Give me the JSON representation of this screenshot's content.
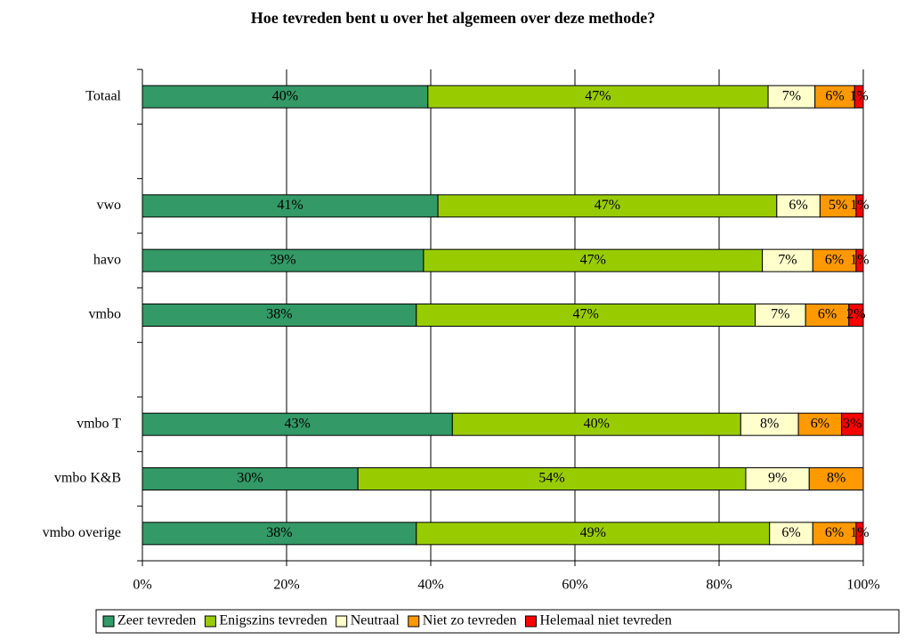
{
  "chart_data": {
    "type": "stacked_bar_horizontal",
    "title": "Hoe tevreden bent u over het algemeen over deze methode?",
    "categories": [
      "Totaal",
      null,
      "vwo",
      "havo",
      "vmbo",
      null,
      "vmbo T",
      "vmbo K&B",
      "vmbo overige"
    ],
    "series": [
      {
        "name": "Zeer tevreden",
        "color": "#339966",
        "values": [
          39.6,
          null,
          41,
          39,
          38,
          null,
          43,
          29.9,
          38
        ],
        "value_labels": [
          "40%",
          null,
          "41%",
          "39%",
          "38%",
          null,
          "43%",
          "30%",
          "38%"
        ]
      },
      {
        "name": "Enigszins tevreden",
        "color": "#99cc00",
        "values": [
          47.2,
          null,
          47,
          47,
          47,
          null,
          40,
          53.8,
          49
        ],
        "value_labels": [
          "47%",
          null,
          "47%",
          "47%",
          "47%",
          null,
          "40%",
          "54%",
          "49%"
        ]
      },
      {
        "name": "Neutraal",
        "color": "#ffffcc",
        "values": [
          6.5,
          null,
          6,
          7,
          7,
          null,
          8,
          8.8,
          6
        ],
        "value_labels": [
          "7%",
          null,
          "6%",
          "7%",
          "7%",
          null,
          "8%",
          "9%",
          "6%"
        ]
      },
      {
        "name": "Niet zo tevreden",
        "color": "#ff9900",
        "values": [
          5.5,
          null,
          5,
          6,
          6,
          null,
          6,
          7.5,
          6
        ],
        "value_labels": [
          "6%",
          null,
          "5%",
          "6%",
          "6%",
          null,
          "6%",
          "8%",
          "6%"
        ]
      },
      {
        "name": "Helemaal niet tevreden",
        "color": "#ff0000",
        "values": [
          1.2,
          null,
          1,
          1,
          2,
          null,
          3,
          null,
          1
        ],
        "value_labels": [
          "1%",
          null,
          "1%",
          "1%",
          "2%",
          null,
          "3%",
          null,
          "1%"
        ]
      }
    ],
    "xlim": [
      0,
      100
    ],
    "xticks": [
      {
        "value": 0,
        "label": "0%"
      },
      {
        "value": 20,
        "label": "20%"
      },
      {
        "value": 40,
        "label": "40%"
      },
      {
        "value": 60,
        "label": "60%"
      },
      {
        "value": 80,
        "label": "80%"
      },
      {
        "value": 100,
        "label": "100%"
      }
    ],
    "grid": true,
    "legend": "bottom"
  }
}
